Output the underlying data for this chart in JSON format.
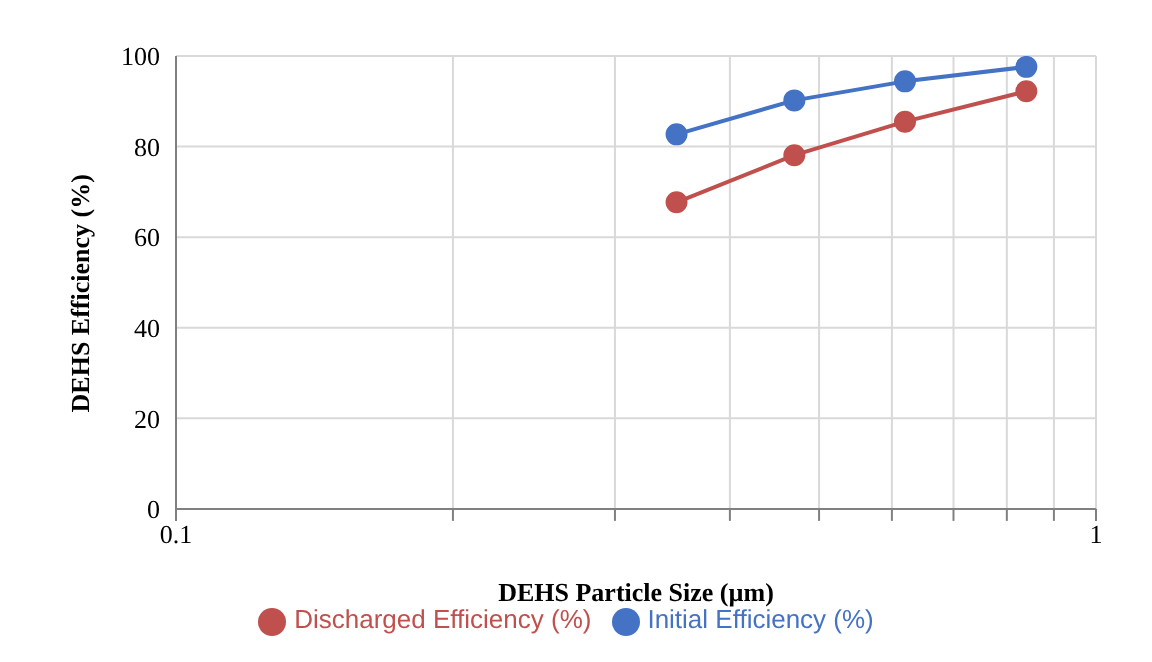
{
  "chart_data": {
    "type": "line",
    "xlabel": "DEHS Particle Size (µm)",
    "ylabel": "DEHS Efficiency (%)",
    "log": "x",
    "x": [
      0.35,
      0.47,
      0.62,
      0.84
    ],
    "series": [
      {
        "name": "Initial Efficiency (%)",
        "color": "#4472c4",
        "values": [
          82.7,
          90.2,
          94.4,
          97.6
        ]
      },
      {
        "name": "Discharged Efficiency (%)",
        "color": "#c0504d",
        "values": [
          67.7,
          78.1,
          85.5,
          92.2
        ]
      }
    ],
    "xlim": [
      0.1,
      1
    ],
    "xticks": [
      0.1,
      {
        "value": 0.2,
        "label": null
      },
      {
        "value": 0.3,
        "label": null
      },
      {
        "value": 0.4,
        "label": null
      },
      {
        "value": 0.5,
        "label": null
      },
      {
        "value": 0.6,
        "label": null
      },
      {
        "value": 0.7,
        "label": null
      },
      {
        "value": 0.8,
        "label": null
      },
      {
        "value": 0.9,
        "label": null
      },
      1
    ],
    "ylim": [
      0,
      100
    ],
    "yticks": [
      0,
      20,
      40,
      60,
      80,
      100
    ],
    "grid": true,
    "legend": "bottom",
    "marker": "circle",
    "line_style": "solid"
  }
}
